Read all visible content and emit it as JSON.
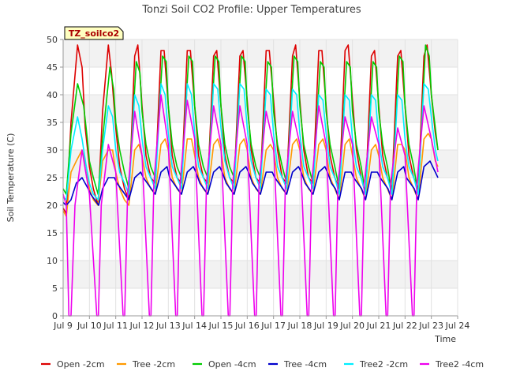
{
  "chart_data": {
    "type": "line",
    "title": "Tonzi Soil CO2 Profile: Upper Temperatures",
    "xlabel": "Time",
    "ylabel": "Soil Temperature (C)",
    "ylim": [
      0,
      50
    ],
    "xlim": [
      9,
      24
    ],
    "y_ticks": [
      0,
      5,
      10,
      15,
      20,
      25,
      30,
      35,
      40,
      45,
      50
    ],
    "x_ticks": [
      {
        "day": 9,
        "label": "Jul 9"
      },
      {
        "day": 10,
        "label": "Jul 10"
      },
      {
        "day": 11,
        "label": "Jul 11"
      },
      {
        "day": 12,
        "label": "Jul 12"
      },
      {
        "day": 13,
        "label": "Jul 13"
      },
      {
        "day": 14,
        "label": "Jul 14"
      },
      {
        "day": 15,
        "label": "Jul 15"
      },
      {
        "day": 16,
        "label": "Jul 16"
      },
      {
        "day": 17,
        "label": "Jul 17"
      },
      {
        "day": 18,
        "label": "Jul 18"
      },
      {
        "day": 19,
        "label": "Jul 19"
      },
      {
        "day": 20,
        "label": "Jul 20"
      },
      {
        "day": 21,
        "label": "Jul 21"
      },
      {
        "day": 22,
        "label": "Jul 22"
      },
      {
        "day": 23,
        "label": "Jul 23"
      },
      {
        "day": 24,
        "label": "Jul 24"
      }
    ],
    "grid": true,
    "banded_background": true,
    "site_label": "TZ_soilco2",
    "legend_position": "bottom",
    "series": [
      {
        "name": "Open -2cm",
        "color": "#dd0000",
        "x": [
          9.0,
          9.12,
          9.3,
          9.55,
          9.72,
          9.84,
          10.0,
          10.15,
          10.33,
          10.5,
          10.72,
          10.84,
          11.0,
          11.15,
          11.33,
          11.5,
          11.72,
          11.84,
          12.0,
          12.15,
          12.33,
          12.5,
          12.72,
          12.84,
          13.0,
          13.15,
          13.33,
          13.5,
          13.72,
          13.84,
          14.0,
          14.15,
          14.33,
          14.5,
          14.72,
          14.84,
          15.0,
          15.15,
          15.33,
          15.5,
          15.72,
          15.84,
          16.0,
          16.15,
          16.33,
          16.5,
          16.72,
          16.84,
          17.0,
          17.15,
          17.33,
          17.5,
          17.72,
          17.84,
          18.0,
          18.15,
          18.33,
          18.5,
          18.72,
          18.84,
          19.0,
          19.15,
          19.33,
          19.5,
          19.72,
          19.84,
          20.0,
          20.15,
          20.33,
          20.5,
          20.72,
          20.84,
          21.0,
          21.15,
          21.33,
          21.5,
          21.72,
          21.84,
          22.0,
          22.15,
          22.33,
          22.5,
          22.72,
          22.84,
          23.0,
          23.15,
          23.25
        ],
        "y": [
          19.5,
          18.5,
          35,
          49,
          45,
          34,
          27,
          23,
          20,
          37,
          49,
          44,
          34,
          27,
          23,
          21,
          47,
          49,
          38,
          29,
          25,
          24,
          48,
          48,
          38,
          29,
          25,
          24,
          48,
          48,
          38,
          29,
          25,
          24,
          47,
          48,
          38,
          29,
          25,
          24,
          47,
          48,
          39,
          30,
          25,
          24,
          48,
          48,
          39,
          30,
          25,
          24,
          47,
          49,
          39,
          30,
          25,
          24,
          48,
          48,
          38,
          29,
          25,
          23,
          48,
          49,
          39,
          30,
          25,
          22,
          47,
          48,
          38,
          29,
          25,
          23,
          47,
          48,
          38,
          29,
          25,
          23,
          47,
          49,
          40,
          33,
          30
        ]
      },
      {
        "name": "Tree -2cm",
        "color": "#ff9900",
        "x": [
          9.0,
          9.12,
          9.3,
          9.5,
          9.72,
          9.88,
          10.0,
          10.15,
          10.33,
          10.5,
          10.72,
          10.88,
          11.0,
          11.15,
          11.33,
          11.5,
          11.72,
          11.88,
          12.0,
          12.15,
          12.33,
          12.5,
          12.72,
          12.88,
          13.0,
          13.15,
          13.33,
          13.5,
          13.72,
          13.88,
          14.0,
          14.15,
          14.33,
          14.5,
          14.72,
          14.88,
          15.0,
          15.15,
          15.33,
          15.5,
          15.72,
          15.88,
          16.0,
          16.15,
          16.33,
          16.5,
          16.72,
          16.88,
          17.0,
          17.15,
          17.33,
          17.5,
          17.72,
          17.88,
          18.0,
          18.15,
          18.33,
          18.5,
          18.72,
          18.88,
          19.0,
          19.15,
          19.33,
          19.5,
          19.72,
          19.88,
          20.0,
          20.15,
          20.33,
          20.5,
          20.72,
          20.88,
          21.0,
          21.15,
          21.33,
          21.5,
          21.72,
          21.88,
          22.0,
          22.15,
          22.33,
          22.5,
          22.72,
          22.88,
          23.0,
          23.15,
          23.25
        ],
        "y": [
          19,
          18,
          26,
          28,
          30,
          27,
          23,
          21,
          20,
          28,
          30,
          30,
          26,
          23,
          21,
          20,
          30,
          31,
          29,
          25,
          23,
          22,
          31,
          32,
          30,
          25,
          23,
          22,
          32,
          32,
          29,
          25,
          23,
          22,
          31,
          32,
          30,
          25,
          23,
          22,
          31,
          32,
          30,
          25,
          23,
          22,
          30,
          31,
          30,
          25,
          23,
          22,
          31,
          32,
          30,
          25,
          23,
          22,
          31,
          32,
          30,
          25,
          23,
          21,
          31,
          32,
          29,
          25,
          23,
          21,
          30,
          31,
          29,
          25,
          23,
          21,
          31,
          31,
          30,
          25,
          23,
          21,
          32,
          33,
          32,
          28,
          27
        ]
      },
      {
        "name": "Open -4cm",
        "color": "#00cc00",
        "x": [
          9.0,
          9.12,
          9.3,
          9.55,
          9.78,
          9.92,
          10.0,
          10.15,
          10.33,
          10.5,
          10.78,
          10.92,
          11.0,
          11.15,
          11.33,
          11.5,
          11.78,
          11.92,
          12.0,
          12.15,
          12.33,
          12.5,
          12.78,
          12.92,
          13.0,
          13.15,
          13.33,
          13.5,
          13.78,
          13.92,
          14.0,
          14.15,
          14.33,
          14.5,
          14.78,
          14.92,
          15.0,
          15.15,
          15.33,
          15.5,
          15.78,
          15.92,
          16.0,
          16.15,
          16.33,
          16.5,
          16.78,
          16.92,
          17.0,
          17.15,
          17.33,
          17.5,
          17.78,
          17.92,
          18.0,
          18.15,
          18.33,
          18.5,
          18.78,
          18.92,
          19.0,
          19.15,
          19.33,
          19.5,
          19.78,
          19.92,
          20.0,
          20.15,
          20.33,
          20.5,
          20.78,
          20.92,
          21.0,
          21.15,
          21.33,
          21.5,
          21.78,
          21.92,
          22.0,
          22.15,
          22.33,
          22.5,
          22.78,
          22.92,
          23.0,
          23.15,
          23.25
        ],
        "y": [
          23,
          22,
          33,
          42,
          38,
          32,
          28,
          25,
          22,
          32,
          45,
          41,
          35,
          30,
          26,
          23,
          46,
          44,
          37,
          31,
          27,
          25,
          47,
          46,
          38,
          31,
          27,
          25,
          47,
          46,
          38,
          31,
          27,
          25,
          47,
          46,
          38,
          31,
          27,
          25,
          47,
          46,
          38,
          31,
          27,
          25,
          46,
          45,
          37,
          31,
          27,
          24,
          47,
          46,
          38,
          31,
          27,
          24,
          46,
          45,
          37,
          31,
          27,
          23,
          46,
          45,
          37,
          31,
          27,
          22,
          46,
          45,
          37,
          31,
          27,
          22,
          47,
          46,
          38,
          31,
          27,
          22,
          49,
          47,
          40,
          34,
          30
        ]
      },
      {
        "name": "Tree -4cm",
        "color": "#0000cc",
        "x": [
          9.0,
          9.12,
          9.3,
          9.5,
          9.72,
          9.95,
          10.05,
          10.2,
          10.35,
          10.5,
          10.72,
          10.95,
          11.05,
          11.2,
          11.35,
          11.5,
          11.72,
          11.95,
          12.05,
          12.2,
          12.35,
          12.5,
          12.72,
          12.95,
          13.05,
          13.2,
          13.35,
          13.5,
          13.72,
          13.95,
          14.05,
          14.2,
          14.35,
          14.5,
          14.72,
          14.95,
          15.05,
          15.2,
          15.35,
          15.5,
          15.72,
          15.95,
          16.05,
          16.2,
          16.35,
          16.5,
          16.72,
          16.95,
          17.05,
          17.2,
          17.35,
          17.5,
          17.72,
          17.95,
          18.05,
          18.2,
          18.35,
          18.5,
          18.72,
          18.95,
          19.05,
          19.2,
          19.35,
          19.5,
          19.72,
          19.95,
          20.05,
          20.2,
          20.35,
          20.5,
          20.72,
          20.95,
          21.05,
          21.2,
          21.35,
          21.5,
          21.72,
          21.95,
          22.05,
          22.2,
          22.35,
          22.5,
          22.72,
          22.95,
          23.05,
          23.15,
          23.25
        ],
        "y": [
          20.5,
          20,
          21,
          24,
          25,
          23,
          22,
          21,
          20,
          23,
          25,
          25,
          24,
          23,
          22,
          21,
          25,
          26,
          25,
          24,
          23,
          22,
          26,
          27,
          25,
          24,
          23,
          22,
          26,
          27,
          26,
          24,
          23,
          22,
          26,
          27,
          26,
          24,
          23,
          22,
          26,
          27,
          26,
          24,
          23,
          22,
          26,
          26,
          25,
          24,
          23,
          22,
          26,
          27,
          26,
          24,
          23,
          22,
          26,
          27,
          26,
          24,
          23,
          21,
          26,
          26,
          25,
          24,
          23,
          21,
          26,
          26,
          25,
          24,
          23,
          21,
          26,
          27,
          25,
          24,
          23,
          21,
          27,
          28,
          27,
          26,
          25
        ]
      },
      {
        "name": "Tree2 -2cm",
        "color": "#00eeff",
        "x": [
          9.0,
          9.12,
          9.3,
          9.55,
          9.72,
          9.88,
          10.0,
          10.15,
          10.33,
          10.5,
          10.72,
          10.88,
          11.0,
          11.15,
          11.33,
          11.5,
          11.72,
          11.88,
          12.0,
          12.15,
          12.33,
          12.5,
          12.72,
          12.88,
          13.0,
          13.15,
          13.33,
          13.5,
          13.72,
          13.88,
          14.0,
          14.15,
          14.33,
          14.5,
          14.72,
          14.88,
          15.0,
          15.15,
          15.33,
          15.5,
          15.72,
          15.88,
          16.0,
          16.15,
          16.33,
          16.5,
          16.72,
          16.88,
          17.0,
          17.15,
          17.33,
          17.5,
          17.72,
          17.88,
          18.0,
          18.15,
          18.33,
          18.5,
          18.72,
          18.88,
          19.0,
          19.15,
          19.33,
          19.5,
          19.72,
          19.88,
          20.0,
          20.15,
          20.33,
          20.5,
          20.72,
          20.88,
          21.0,
          21.15,
          21.33,
          21.5,
          21.72,
          21.88,
          22.0,
          22.15,
          22.33,
          22.5,
          22.72,
          22.88,
          23.0,
          23.15,
          23.25
        ],
        "y": [
          21.5,
          21,
          30,
          36,
          32,
          27,
          24,
          22,
          21,
          30,
          38,
          36,
          30,
          26,
          24,
          22,
          40,
          38,
          32,
          27,
          25,
          23,
          42,
          40,
          33,
          27,
          25,
          23,
          42,
          40,
          33,
          27,
          25,
          23,
          42,
          41,
          34,
          28,
          25,
          23,
          42,
          41,
          34,
          28,
          25,
          23,
          41,
          40,
          33,
          27,
          25,
          23,
          41,
          40,
          33,
          27,
          25,
          23,
          40,
          39,
          33,
          27,
          25,
          22,
          40,
          39,
          32,
          27,
          25,
          22,
          40,
          39,
          32,
          27,
          25,
          22,
          40,
          39,
          32,
          27,
          25,
          22,
          42,
          41,
          36,
          30,
          28
        ]
      },
      {
        "name": "Tree2 -4cm",
        "color": "#ee00ee",
        "x": [
          9.0,
          9.12,
          9.22,
          9.3,
          9.45,
          9.72,
          10.0,
          10.28,
          10.34,
          10.45,
          10.72,
          11.0,
          11.28,
          11.34,
          11.45,
          11.72,
          12.0,
          12.28,
          12.34,
          12.45,
          12.72,
          13.0,
          13.28,
          13.34,
          13.45,
          13.72,
          14.0,
          14.28,
          14.34,
          14.45,
          14.72,
          15.0,
          15.28,
          15.34,
          15.45,
          15.72,
          16.0,
          16.28,
          16.34,
          16.45,
          16.72,
          17.0,
          17.28,
          17.34,
          17.45,
          17.72,
          18.0,
          18.28,
          18.34,
          18.45,
          18.72,
          19.0,
          19.28,
          19.34,
          19.45,
          19.72,
          20.0,
          20.28,
          20.34,
          20.45,
          20.72,
          21.0,
          21.28,
          21.34,
          21.45,
          21.72,
          22.0,
          22.28,
          22.34,
          22.45,
          22.72,
          23.0,
          23.25
        ],
        "y": [
          22,
          20,
          0,
          0,
          20,
          30,
          22,
          0,
          0,
          20,
          31,
          26,
          0,
          0,
          22,
          37,
          29,
          0,
          0,
          24,
          40,
          31,
          0,
          0,
          24,
          39,
          32,
          0,
          0,
          24,
          38,
          31,
          0,
          0,
          24,
          38,
          31,
          0,
          0,
          24,
          37,
          31,
          0,
          0,
          24,
          37,
          31,
          0,
          0,
          24,
          38,
          31,
          0,
          0,
          24,
          36,
          31,
          0,
          0,
          24,
          36,
          31,
          0,
          0,
          24,
          34,
          29,
          0,
          0,
          24,
          38,
          32,
          26
        ]
      }
    ]
  }
}
